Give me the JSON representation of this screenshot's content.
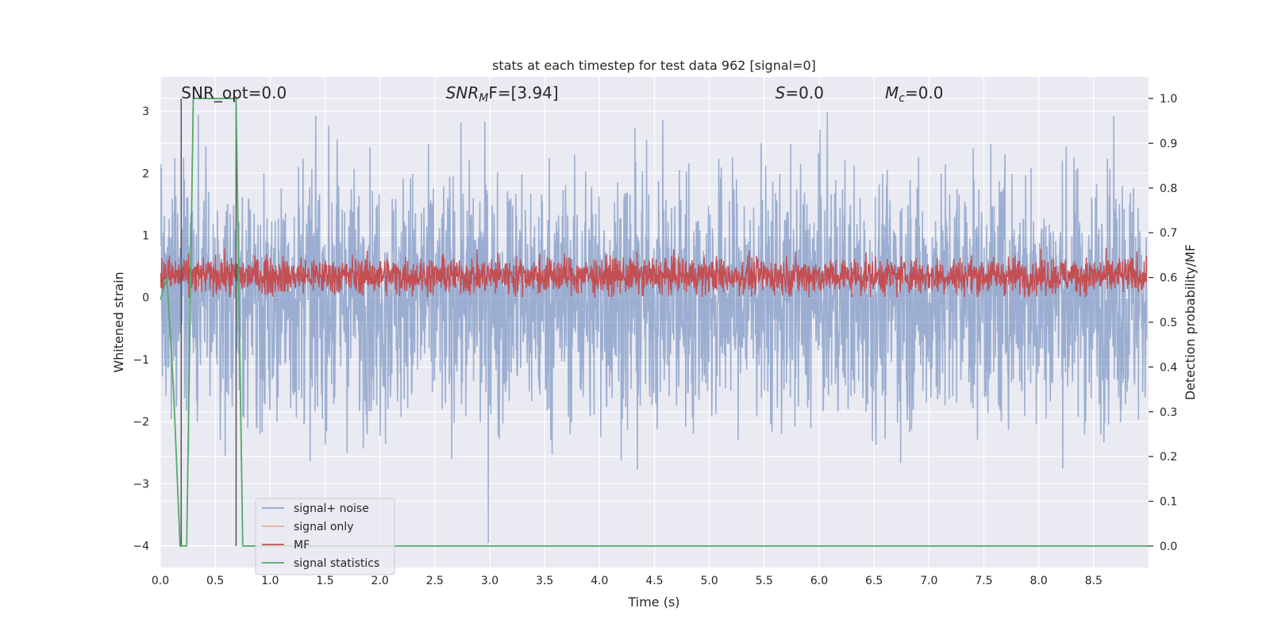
{
  "chart_data": {
    "type": "line",
    "title": "stats at each timestep for test data 962 [signal=0]",
    "xlabel": "Time (s)",
    "ylabel": "Whitened strain",
    "ylabel_right": "Detection probability/MF",
    "xlim": [
      0.0,
      9.0
    ],
    "ylim": [
      -4.35,
      3.55
    ],
    "ylim_right": [
      -0.048,
      1.048
    ],
    "x_ticks": [
      0.0,
      0.5,
      1.0,
      1.5,
      2.0,
      2.5,
      3.0,
      3.5,
      4.0,
      4.5,
      5.0,
      5.5,
      6.0,
      6.5,
      7.0,
      7.5,
      8.0,
      8.5
    ],
    "y_ticks": [
      3,
      2,
      1,
      0,
      -1,
      -2,
      -3,
      -4
    ],
    "y_ticks_right": [
      1.0,
      0.9,
      0.8,
      0.7,
      0.6,
      0.5,
      0.4,
      0.3,
      0.2,
      0.1,
      0.0
    ],
    "grid": true,
    "legend_position": "lower-left",
    "colors": {
      "signal_noise": "#4c72b0",
      "signal_only": "#dd8452",
      "mf": "#c44e52",
      "signal_statistics": "#55a868",
      "background": "#eaeaf2"
    },
    "annotations": {
      "snr_opt": {
        "text": "SNR_opt=0.0",
        "x": 0.19
      },
      "snr_mf": {
        "prefix": "SNR",
        "sub": "M",
        "suffix": "F=[3.94]",
        "x": 2.6
      },
      "s": {
        "italic": "S",
        "suffix": "=0.0",
        "x": 5.6
      },
      "mc": {
        "italic": "M",
        "sub": "c",
        "suffix": "=0.0",
        "x": 6.6
      }
    },
    "vertical_markers": [
      0.19,
      0.69
    ],
    "series": [
      {
        "name": "signal+ noise",
        "key": "signal_noise",
        "description": "noise spanning roughly -2.5 to 2.5 with spikes up to 3.4 and down to -4.0",
        "y_range": [
          -4.0,
          3.45
        ]
      },
      {
        "name": "signal only",
        "key": "signal_only",
        "values": []
      },
      {
        "name": "MF",
        "key": "mf",
        "description": "oscillates between about 0 and 0.9 on left axis",
        "y_range": [
          0.0,
          0.95
        ]
      },
      {
        "name": "signal statistics",
        "key": "signal_statistics",
        "axis": "right",
        "x": [
          0.0,
          0.06,
          0.12,
          0.18,
          0.24,
          0.3,
          0.36,
          0.42,
          0.48,
          0.54,
          0.6,
          0.66,
          0.69,
          0.75,
          0.81,
          9.0
        ],
        "values": [
          0.55,
          0.6,
          0.35,
          0.0,
          0.0,
          1.0,
          1.0,
          1.0,
          1.0,
          1.0,
          1.0,
          1.0,
          1.0,
          0.0,
          0.0,
          0.0
        ]
      }
    ]
  }
}
